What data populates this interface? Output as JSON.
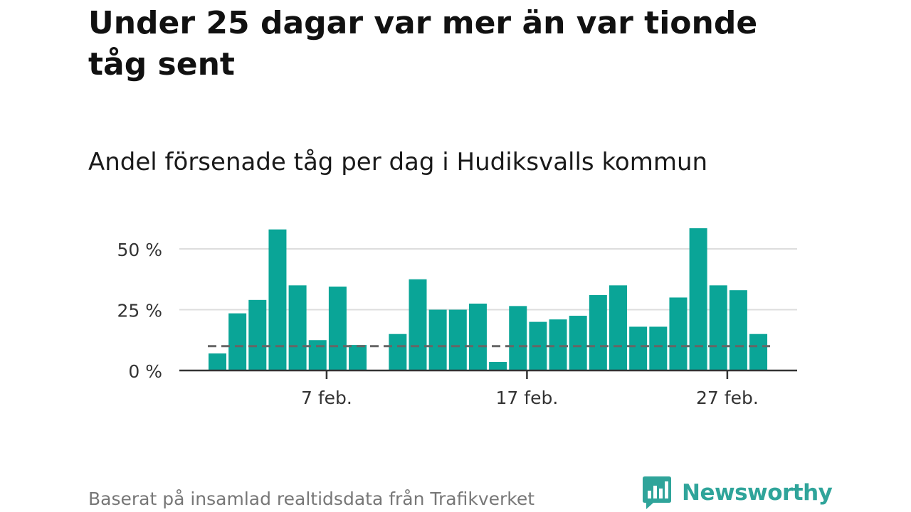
{
  "header": {
    "title": "Under 25 dagar var mer än var tionde tåg sent",
    "subtitle": "Andel försenade tåg per dag i Hudiksvalls kommun"
  },
  "footer": {
    "source": "Baserat på insamlad realtidsdata från Trafikverket",
    "brand": "Newsworthy",
    "brand_icon": "bar-chart-speech-bubble-icon"
  },
  "colors": {
    "bar": "#0aa597",
    "reference_line": "#666666",
    "gridline": "#dddddd",
    "axis": "#333333",
    "brand": "#2fa49a"
  },
  "chart_data": {
    "type": "bar",
    "x": [
      "1 feb.",
      "2 feb.",
      "3 feb.",
      "4 feb.",
      "5 feb.",
      "6 feb.",
      "7 feb.",
      "8 feb.",
      "9 feb.",
      "10 feb.",
      "11 feb.",
      "12 feb.",
      "13 feb.",
      "14 feb.",
      "15 feb.",
      "16 feb.",
      "17 feb.",
      "18 feb.",
      "19 feb.",
      "20 feb.",
      "21 feb.",
      "22 feb.",
      "23 feb.",
      "24 feb.",
      "25 feb.",
      "26 feb.",
      "27 feb.",
      "28 feb."
    ],
    "values": [
      7,
      23.5,
      29,
      58,
      35,
      12.5,
      34.5,
      10.5,
      null,
      15,
      37.5,
      25,
      25,
      27.5,
      3.5,
      26.5,
      20,
      21,
      22.5,
      31,
      35,
      18,
      18,
      30,
      58.5,
      35,
      33,
      15
    ],
    "xticks": [
      "7 feb.",
      "17 feb.",
      "27 feb."
    ],
    "yticks": [
      0,
      25,
      50
    ],
    "ytick_labels": [
      "0 %",
      "25 %",
      "50 %"
    ],
    "ylim": [
      0,
      60
    ],
    "reference_line": 10,
    "grid": true
  }
}
